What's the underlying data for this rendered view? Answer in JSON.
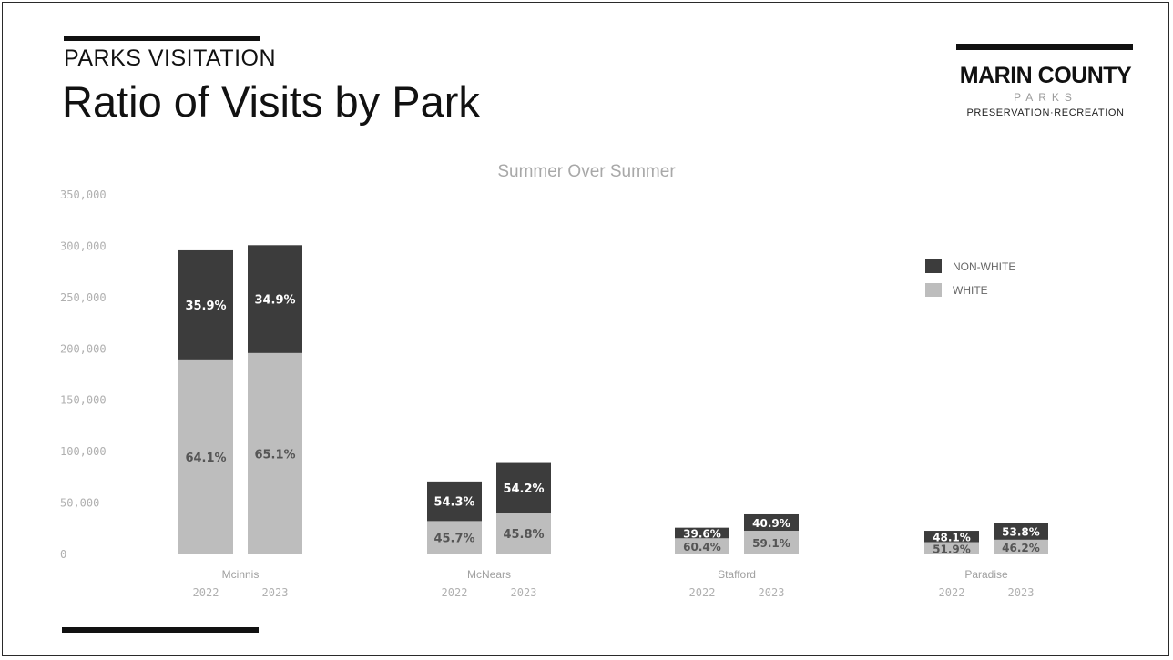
{
  "header": {
    "eyebrow": "PARKS VISITATION",
    "title": "Ratio of Visits by Park"
  },
  "logo": {
    "line1": "MARIN COUNTY",
    "line2": "PARKS",
    "line3": "PRESERVATION·RECREATION"
  },
  "colors": {
    "non_white": "#3c3c3c",
    "white": "#bdbdbd",
    "axis_text": "#b0b0b0",
    "label_text": "#ffffff"
  },
  "chart_data": {
    "type": "bar",
    "stacked": true,
    "title": "Summer Over Summer",
    "ylim": [
      0,
      350000
    ],
    "yticks": [
      "0",
      "50,000",
      "100,000",
      "150,000",
      "200,000",
      "250,000",
      "300,000",
      "350,000"
    ],
    "ytick_values": [
      0,
      50000,
      100000,
      150000,
      200000,
      250000,
      300000,
      350000
    ],
    "legend": {
      "position": "right",
      "entries": [
        "NON-WHITE",
        "WHITE"
      ]
    },
    "groups": [
      {
        "name": "Mcinnis",
        "bars": [
          {
            "year": "2022",
            "total": 296000,
            "non_white_pct": "35.9%",
            "white_pct": "64.1%",
            "non_white_share": 0.359
          },
          {
            "year": "2023",
            "total": 301000,
            "non_white_pct": "34.9%",
            "white_pct": "65.1%",
            "non_white_share": 0.349
          }
        ]
      },
      {
        "name": "McNears",
        "bars": [
          {
            "year": "2022",
            "total": 71000,
            "non_white_pct": "54.3%",
            "white_pct": "45.7%",
            "non_white_share": 0.543
          },
          {
            "year": "2023",
            "total": 89000,
            "non_white_pct": "54.2%",
            "white_pct": "45.8%",
            "non_white_share": 0.542
          }
        ]
      },
      {
        "name": "Stafford",
        "bars": [
          {
            "year": "2022",
            "total": 26000,
            "non_white_pct": "39.6%",
            "white_pct": "60.4%",
            "non_white_share": 0.396
          },
          {
            "year": "2023",
            "total": 39000,
            "non_white_pct": "40.9%",
            "white_pct": "59.1%",
            "non_white_share": 0.409
          }
        ]
      },
      {
        "name": "Paradise",
        "bars": [
          {
            "year": "2022",
            "total": 23000,
            "non_white_pct": "48.1%",
            "white_pct": "51.9%",
            "non_white_share": 0.481
          },
          {
            "year": "2023",
            "total": 31000,
            "non_white_pct": "53.8%",
            "white_pct": "46.2%",
            "non_white_share": 0.538
          }
        ]
      }
    ]
  }
}
